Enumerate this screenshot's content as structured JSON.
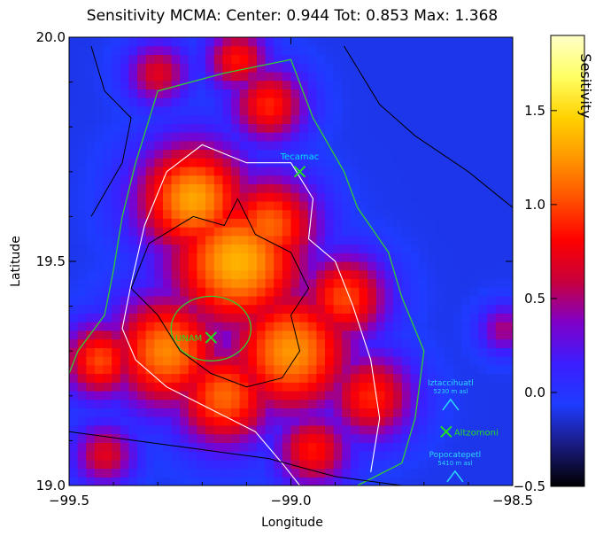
{
  "chart_data": {
    "type": "heatmap",
    "title": "Sensitivity MCMA:  Center: 0.944  Tot: 0.853  Max: 1.368",
    "xlabel": "Longitude",
    "ylabel": "Latitude",
    "xlim": [
      -99.5,
      -98.5
    ],
    "ylim": [
      19.0,
      20.0
    ],
    "xticks": [
      -99.5,
      -99.0,
      -98.5
    ],
    "xtick_labels": [
      "−99.5",
      "−99.0",
      "−98.5"
    ],
    "yticks": [
      19.0,
      19.5,
      20.0
    ],
    "ytick_labels": [
      "19.0",
      "19.5",
      "20.0"
    ],
    "colorbar": {
      "title": "Sesitivity",
      "range": [
        -0.5,
        1.9
      ],
      "ticks": [
        -0.5,
        0.0,
        0.5,
        1.0,
        1.5
      ],
      "tick_labels": [
        "−0.5",
        "0.0",
        "0.5",
        "1.0",
        "1.5"
      ],
      "colormap": [
        "#000000",
        "#1a1a80",
        "#1e3cff",
        "#3c1eff",
        "#8000c8",
        "#c8003c",
        "#ff0000",
        "#ff5000",
        "#ff9600",
        "#ffd200",
        "#ffff64",
        "#ffffc8"
      ]
    },
    "field": {
      "background": -0.1,
      "hotspots": [
        {
          "lon": -99.22,
          "lat": 19.64,
          "value": 1.3,
          "spread": 0.09
        },
        {
          "lon": -99.12,
          "lat": 19.5,
          "value": 1.35,
          "spread": 0.11
        },
        {
          "lon": -99.05,
          "lat": 19.58,
          "value": 1.1,
          "spread": 0.08
        },
        {
          "lon": -99.0,
          "lat": 19.3,
          "value": 1.25,
          "spread": 0.1
        },
        {
          "lon": -99.28,
          "lat": 19.3,
          "value": 1.2,
          "spread": 0.09
        },
        {
          "lon": -99.15,
          "lat": 19.2,
          "value": 1.1,
          "spread": 0.08
        },
        {
          "lon": -98.88,
          "lat": 19.42,
          "value": 1.0,
          "spread": 0.07
        },
        {
          "lon": -98.82,
          "lat": 19.2,
          "value": 0.9,
          "spread": 0.07
        },
        {
          "lon": -99.43,
          "lat": 19.28,
          "value": 1.0,
          "spread": 0.06
        },
        {
          "lon": -99.05,
          "lat": 19.85,
          "value": 0.9,
          "spread": 0.06
        },
        {
          "lon": -99.12,
          "lat": 19.95,
          "value": 0.85,
          "spread": 0.05
        },
        {
          "lon": -99.3,
          "lat": 19.92,
          "value": 0.7,
          "spread": 0.05
        },
        {
          "lon": -99.42,
          "lat": 19.07,
          "value": 0.7,
          "spread": 0.05
        },
        {
          "lon": -98.95,
          "lat": 19.08,
          "value": 0.85,
          "spread": 0.06
        },
        {
          "lon": -98.52,
          "lat": 19.35,
          "value": 0.5,
          "spread": 0.04
        }
      ]
    },
    "contours": {
      "green": [
        [
          [
            -99.35,
            19.72
          ],
          [
            -99.3,
            19.88
          ],
          [
            -99.15,
            19.92
          ],
          [
            -99.0,
            19.95
          ],
          [
            -98.95,
            19.82
          ],
          [
            -98.88,
            19.7
          ],
          [
            -98.85,
            19.62
          ],
          [
            -98.78,
            19.52
          ],
          [
            -98.75,
            19.42
          ],
          [
            -98.7,
            19.3
          ],
          [
            -98.72,
            19.15
          ],
          [
            -98.75,
            19.05
          ],
          [
            -98.85,
            19.0
          ]
        ],
        [
          [
            -99.35,
            19.72
          ],
          [
            -99.38,
            19.6
          ],
          [
            -99.4,
            19.48
          ],
          [
            -99.42,
            19.38
          ],
          [
            -99.48,
            19.3
          ],
          [
            -99.5,
            19.25
          ]
        ]
      ],
      "white": [
        [
          [
            -99.28,
            19.7
          ],
          [
            -99.2,
            19.76
          ],
          [
            -99.1,
            19.72
          ],
          [
            -99.0,
            19.72
          ],
          [
            -98.95,
            19.64
          ],
          [
            -98.96,
            19.55
          ],
          [
            -98.9,
            19.5
          ],
          [
            -98.86,
            19.4
          ],
          [
            -98.82,
            19.28
          ],
          [
            -98.8,
            19.15
          ],
          [
            -98.82,
            19.03
          ]
        ],
        [
          [
            -99.28,
            19.7
          ],
          [
            -99.33,
            19.58
          ],
          [
            -99.36,
            19.45
          ],
          [
            -99.38,
            19.35
          ],
          [
            -99.35,
            19.28
          ],
          [
            -99.28,
            19.22
          ],
          [
            -99.18,
            19.17
          ],
          [
            -99.08,
            19.12
          ],
          [
            -99.02,
            19.05
          ],
          [
            -98.98,
            19.0
          ]
        ]
      ]
    },
    "sites": [
      {
        "name": "Tecamac",
        "lon": -98.98,
        "lat": 19.7,
        "label_color": "#00e0ff",
        "marker_color": "#22dd22"
      },
      {
        "name": "UNAM",
        "lon": -99.18,
        "lat": 19.33,
        "label_color": "#22dd22",
        "marker_color": "#22dd22"
      },
      {
        "name": "Altzomoni",
        "lon": -98.65,
        "lat": 19.12,
        "label_color": "#22dd22",
        "marker_color": "#22dd22"
      }
    ],
    "volcanoes": [
      {
        "name": "Iztaccihuatl",
        "elevation": "5230 m asl",
        "lon": -98.64,
        "lat": 19.18
      },
      {
        "name": "Popocatepetl",
        "elevation": "5410 m asl",
        "lon": -98.63,
        "lat": 19.02
      }
    ],
    "unam_circle": {
      "lon": -99.18,
      "lat": 19.35,
      "radius_deg": 0.09
    }
  }
}
